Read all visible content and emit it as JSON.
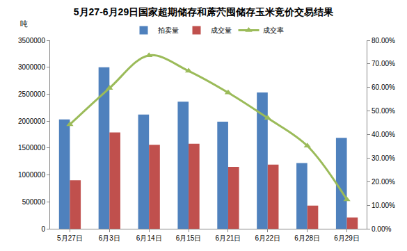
{
  "chart_data": {
    "type": "bar",
    "title": "5月27-6月29日国家超期储存和蓆茓囤储存玉米竞价交易结果",
    "ylabel": "吨",
    "categories": [
      "5月27日",
      "6月3日",
      "6月14日",
      "6月15日",
      "6月21日",
      "6月22日",
      "6月28日",
      "6月29日"
    ],
    "series": [
      {
        "name": "拍卖量",
        "type": "bar",
        "color": "#4f81bd",
        "values": [
          2030000,
          3000000,
          2120000,
          2360000,
          1990000,
          2530000,
          1220000,
          1690000
        ]
      },
      {
        "name": "成交量",
        "type": "bar",
        "color": "#c0504d",
        "values": [
          900000,
          1790000,
          1560000,
          1580000,
          1150000,
          1190000,
          430000,
          210000
        ]
      },
      {
        "name": "成交率",
        "type": "line",
        "axis": "y2",
        "color": "#9bbb59",
        "marker": "triangle",
        "line_style": "smooth",
        "values": [
          44.3,
          59.7,
          73.6,
          67.0,
          57.8,
          47.0,
          35.2,
          12.4
        ]
      }
    ],
    "ylim": [
      0,
      3500000
    ],
    "yticks": [
      0,
      500000,
      1000000,
      1500000,
      2000000,
      2500000,
      3000000,
      3500000
    ],
    "y2lim": [
      0,
      80
    ],
    "y2ticks": [
      {
        "value": 0,
        "label": "0.00%"
      },
      {
        "value": 10,
        "label": "10.00%"
      },
      {
        "value": 20,
        "label": "20.00%"
      },
      {
        "value": 30,
        "label": "30.00%"
      },
      {
        "value": 40,
        "label": "40.00%"
      },
      {
        "value": 50,
        "label": "50.00%"
      },
      {
        "value": 60,
        "label": "60.00%"
      },
      {
        "value": 70,
        "label": "70.00%"
      },
      {
        "value": 80,
        "label": "80.00%"
      }
    ],
    "grid": false,
    "legend": "top"
  }
}
